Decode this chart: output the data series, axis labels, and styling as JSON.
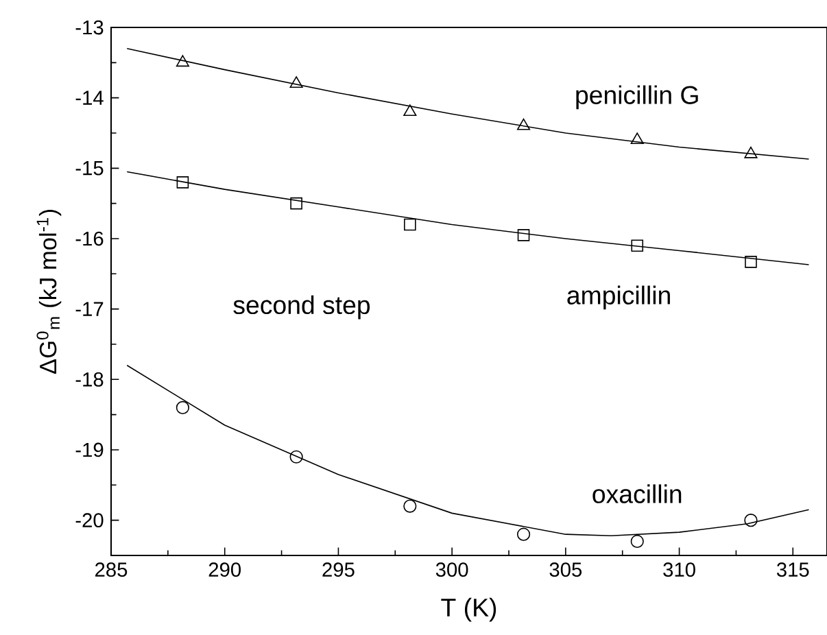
{
  "chart_data": {
    "type": "scatter",
    "xlabel": "T (K)",
    "ylabel": "ΔG$^{0}$$_{m}$ (kJ mol$^{-1}$)",
    "xlim": [
      285,
      316.5
    ],
    "ylim": [
      -20.5,
      -13
    ],
    "xticks": [
      285,
      290,
      295,
      300,
      305,
      310,
      315
    ],
    "yticks": [
      -20,
      -19,
      -18,
      -17,
      -16,
      -15,
      -14,
      -13
    ],
    "grid": false,
    "annotations": [
      "second step"
    ],
    "series": [
      {
        "name": "penicillin G",
        "marker": "triangle",
        "color": "#000000",
        "x": [
          288.15,
          293.15,
          298.15,
          303.15,
          308.15,
          313.15
        ],
        "values": [
          -13.5,
          -13.8,
          -14.2,
          -14.4,
          -14.6,
          -14.8
        ]
      },
      {
        "name": "ampicillin",
        "marker": "square",
        "color": "#000000",
        "x": [
          288.15,
          293.15,
          298.15,
          303.15,
          308.15,
          313.15
        ],
        "values": [
          -15.2,
          -15.5,
          -15.8,
          -15.95,
          -16.1,
          -16.33
        ]
      },
      {
        "name": "oxacillin",
        "marker": "circle",
        "color": "#000000",
        "x": [
          288.15,
          293.15,
          298.15,
          303.15,
          308.15,
          313.15
        ],
        "values": [
          -18.4,
          -19.1,
          -19.8,
          -20.2,
          -20.3,
          -20.0
        ]
      },
      {
        "type": "line",
        "marker": "none",
        "color": "#000000",
        "x": [
          285.7,
          290,
          295,
          300,
          305,
          310,
          315.7
        ],
        "values": [
          -13.3,
          -13.6,
          -13.93,
          -14.23,
          -14.5,
          -14.7,
          -14.87
        ]
      },
      {
        "type": "line",
        "marker": "none",
        "color": "#000000",
        "x": [
          285.7,
          290,
          295,
          300,
          305,
          310,
          315.7
        ],
        "values": [
          -15.05,
          -15.3,
          -15.55,
          -15.8,
          -16.0,
          -16.17,
          -16.37
        ]
      },
      {
        "type": "line",
        "marker": "none",
        "color": "#000000",
        "x": [
          285.7,
          290,
          295,
          300,
          305,
          307,
          310,
          313,
          315.7
        ],
        "values": [
          -17.8,
          -18.65,
          -19.35,
          -19.9,
          -20.2,
          -20.22,
          -20.17,
          -20.05,
          -19.85
        ]
      }
    ]
  }
}
